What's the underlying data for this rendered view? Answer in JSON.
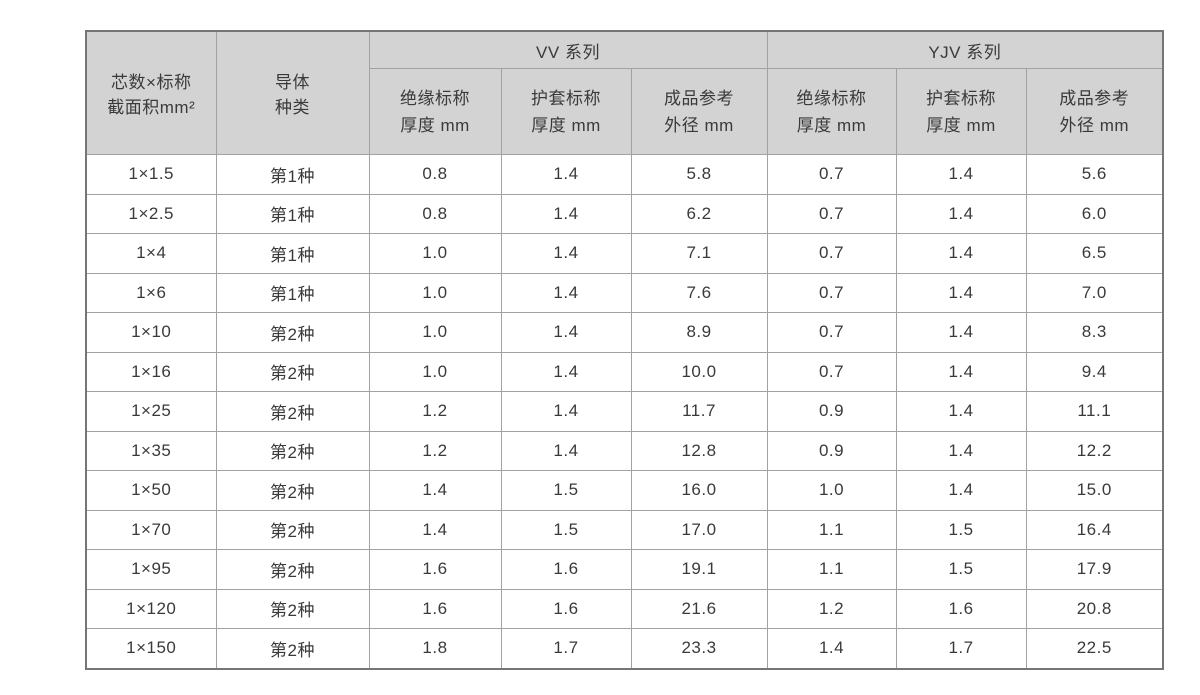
{
  "colors": {
    "header_bg": "#d3d3d3",
    "body_bg": "#ffffff",
    "border": "#a2a2a2",
    "outer_border": "#767676",
    "text": "#3a3a3a"
  },
  "table": {
    "col1": {
      "line1": "芯数×标称",
      "line2": "截面积mm²"
    },
    "col2": {
      "line1": "导体",
      "line2": "种类"
    },
    "groups": [
      {
        "label": "VV 系列"
      },
      {
        "label": "YJV 系列"
      }
    ],
    "subcols": [
      {
        "line1": "绝缘标称",
        "line2": "厚度 mm"
      },
      {
        "line1": "护套标称",
        "line2": "厚度 mm"
      },
      {
        "line1": "成品参考",
        "line2": "外径 mm"
      },
      {
        "line1": "绝缘标称",
        "line2": "厚度 mm"
      },
      {
        "line1": "护套标称",
        "line2": "厚度 mm"
      },
      {
        "line1": "成品参考",
        "line2": "外径 mm"
      }
    ],
    "rows": [
      [
        "1×1.5",
        "第1种",
        "0.8",
        "1.4",
        "5.8",
        "0.7",
        "1.4",
        "5.6"
      ],
      [
        "1×2.5",
        "第1种",
        "0.8",
        "1.4",
        "6.2",
        "0.7",
        "1.4",
        "6.0"
      ],
      [
        "1×4",
        "第1种",
        "1.0",
        "1.4",
        "7.1",
        "0.7",
        "1.4",
        "6.5"
      ],
      [
        "1×6",
        "第1种",
        "1.0",
        "1.4",
        "7.6",
        "0.7",
        "1.4",
        "7.0"
      ],
      [
        "1×10",
        "第2种",
        "1.0",
        "1.4",
        "8.9",
        "0.7",
        "1.4",
        "8.3"
      ],
      [
        "1×16",
        "第2种",
        "1.0",
        "1.4",
        "10.0",
        "0.7",
        "1.4",
        "9.4"
      ],
      [
        "1×25",
        "第2种",
        "1.2",
        "1.4",
        "11.7",
        "0.9",
        "1.4",
        "11.1"
      ],
      [
        "1×35",
        "第2种",
        "1.2",
        "1.4",
        "12.8",
        "0.9",
        "1.4",
        "12.2"
      ],
      [
        "1×50",
        "第2种",
        "1.4",
        "1.5",
        "16.0",
        "1.0",
        "1.4",
        "15.0"
      ],
      [
        "1×70",
        "第2种",
        "1.4",
        "1.5",
        "17.0",
        "1.1",
        "1.5",
        "16.4"
      ],
      [
        "1×95",
        "第2种",
        "1.6",
        "1.6",
        "19.1",
        "1.1",
        "1.5",
        "17.9"
      ],
      [
        "1×120",
        "第2种",
        "1.6",
        "1.6",
        "21.6",
        "1.2",
        "1.6",
        "20.8"
      ],
      [
        "1×150",
        "第2种",
        "1.8",
        "1.7",
        "23.3",
        "1.4",
        "1.7",
        "22.5"
      ]
    ]
  }
}
